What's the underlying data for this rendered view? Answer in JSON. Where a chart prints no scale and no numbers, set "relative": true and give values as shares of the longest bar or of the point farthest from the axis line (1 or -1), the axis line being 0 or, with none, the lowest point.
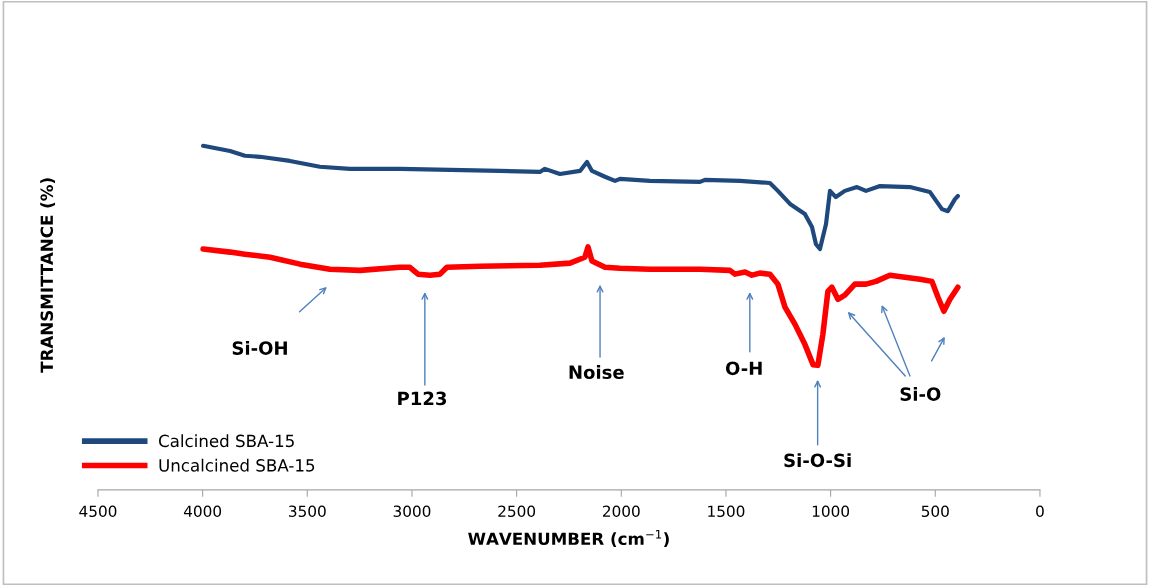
{
  "chart_data": {
    "type": "line",
    "relative": true,
    "xlabel": "WAVENUMBER (cm$^{−1}$)",
    "ylabel": "TRANSMITTANCE (%)",
    "xlim": [
      4500,
      0
    ],
    "xticks": [
      4500,
      4000,
      3500,
      3000,
      2500,
      2000,
      1500,
      1000,
      500,
      0
    ],
    "legend": "bottom left",
    "grid": false,
    "marker": "none",
    "line_style": "solid",
    "series": [
      {
        "name": "Calcined SBA-15",
        "color": "#1f497d",
        "x": [
          3998,
          3869,
          3798,
          3726,
          3583,
          3440,
          3296,
          3057,
          2818,
          2580,
          2389,
          2365,
          2293,
          2197,
          2164,
          2140,
          2078,
          2030,
          2006,
          1863,
          1624,
          1600,
          1433,
          1290,
          1252,
          1194,
          1123,
          1089,
          1070,
          1051,
          1022,
          1003,
          975,
          932,
          874,
          831,
          764,
          621,
          526,
          468,
          440,
          406,
          392
        ],
        "values": [
          1.0,
          0.985,
          0.971,
          0.968,
          0.956,
          0.939,
          0.933,
          0.933,
          0.93,
          0.927,
          0.924,
          0.933,
          0.918,
          0.927,
          0.953,
          0.927,
          0.91,
          0.898,
          0.904,
          0.898,
          0.895,
          0.901,
          0.898,
          0.892,
          0.869,
          0.831,
          0.802,
          0.764,
          0.714,
          0.7,
          0.773,
          0.869,
          0.851,
          0.869,
          0.88,
          0.869,
          0.883,
          0.88,
          0.866,
          0.816,
          0.81,
          0.845,
          0.854
        ]
      },
      {
        "name": "Uncalcined SBA-15",
        "color": "#ff0000",
        "x": [
          3998,
          3869,
          3798,
          3678,
          3535,
          3392,
          3248,
          3057,
          3010,
          2971,
          2914,
          2866,
          2833,
          2675,
          2389,
          2245,
          2174,
          2159,
          2140,
          2078,
          2006,
          1863,
          1624,
          1481,
          1457,
          1409,
          1376,
          1338,
          1290,
          1252,
          1218,
          1170,
          1123,
          1084,
          1061,
          1037,
          1013,
          994,
          965,
          932,
          884,
          831,
          783,
          717,
          573,
          516,
          487,
          459,
          430,
          392
        ],
        "values": [
          0.7,
          0.691,
          0.685,
          0.676,
          0.656,
          0.641,
          0.638,
          0.647,
          0.647,
          0.627,
          0.624,
          0.627,
          0.647,
          0.65,
          0.653,
          0.659,
          0.676,
          0.706,
          0.665,
          0.647,
          0.644,
          0.641,
          0.641,
          0.638,
          0.627,
          0.633,
          0.624,
          0.63,
          0.627,
          0.598,
          0.531,
          0.481,
          0.423,
          0.364,
          0.362,
          0.452,
          0.577,
          0.589,
          0.554,
          0.566,
          0.598,
          0.598,
          0.606,
          0.624,
          0.612,
          0.606,
          0.56,
          0.519,
          0.554,
          0.589
        ]
      }
    ],
    "annotations": [
      "Si-OH",
      "P123",
      "Noise",
      "O-H",
      "Si-O-Si",
      "Si-O"
    ]
  }
}
